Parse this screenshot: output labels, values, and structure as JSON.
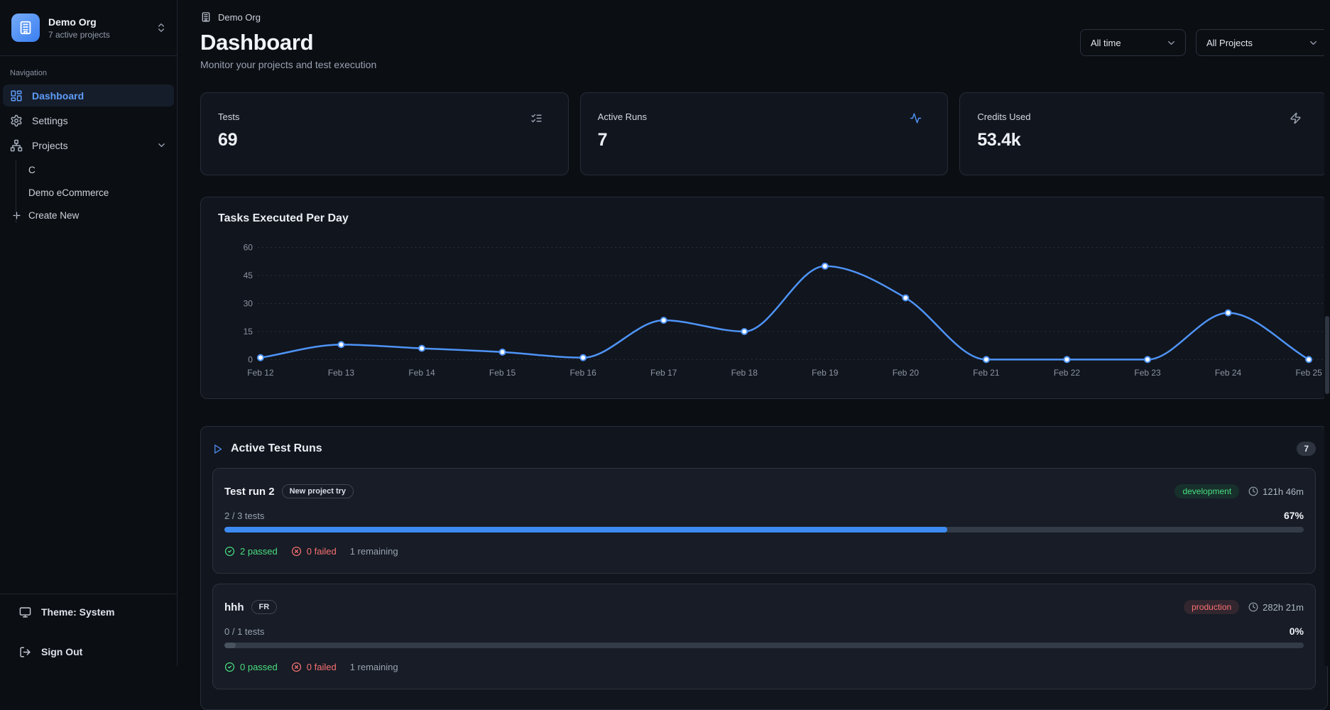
{
  "colors": {
    "accent_blue": "#4e94f8",
    "green": "#4ade80",
    "red": "#f87171",
    "grid": "#2a303c",
    "axis_text": "#8b94a3",
    "dot_fill": "#ffffff"
  },
  "sidebar": {
    "org": {
      "name": "Demo Org",
      "subtitle": "7 active projects",
      "avatar_icon": "building-icon",
      "switcher_icon": "chevrons-up-down-icon"
    },
    "section_label": "Navigation",
    "nav": [
      {
        "label": "Dashboard",
        "icon": "layout-dashboard-icon",
        "active": true
      },
      {
        "label": "Settings",
        "icon": "gear-icon",
        "active": false
      },
      {
        "label": "Projects",
        "icon": "network-icon",
        "active": false,
        "trailing_icon": "chevron-down-icon"
      }
    ],
    "projects": [
      {
        "label": "C"
      },
      {
        "label": "Demo eCommerce"
      }
    ],
    "create_new": {
      "label": "Create New",
      "icon": "plus-icon"
    },
    "footer": {
      "theme": {
        "label": "Theme: System",
        "icon": "monitor-icon"
      },
      "sign_out": {
        "label": "Sign Out",
        "icon": "log-out-icon"
      }
    }
  },
  "header": {
    "breadcrumb": {
      "label": "Demo Org",
      "icon": "building-icon"
    },
    "title": "Dashboard",
    "subtitle": "Monitor your projects and test execution",
    "filters": {
      "time_range": {
        "value": "All time",
        "icon": "chevron-down-icon"
      },
      "project": {
        "value": "All Projects",
        "icon": "chevron-down-icon"
      }
    }
  },
  "stats": [
    {
      "label": "Tests",
      "value": "69",
      "icon": "list-checks-icon"
    },
    {
      "label": "Active Runs",
      "value": "7",
      "icon": "activity-icon"
    },
    {
      "label": "Credits Used",
      "value": "53.4k",
      "icon": "zap-icon"
    }
  ],
  "chart_data": {
    "type": "line",
    "title": "Tasks Executed Per Day",
    "categories": [
      "Feb 12",
      "Feb 13",
      "Feb 14",
      "Feb 15",
      "Feb 16",
      "Feb 17",
      "Feb 18",
      "Feb 19",
      "Feb 20",
      "Feb 21",
      "Feb 22",
      "Feb 23",
      "Feb 24",
      "Feb 25"
    ],
    "values": [
      1,
      8,
      6,
      4,
      1,
      21,
      15,
      50,
      33,
      0,
      0,
      0,
      25,
      0
    ],
    "yticks": [
      0,
      15,
      30,
      45,
      60
    ],
    "ylim": [
      0,
      60
    ],
    "xlabel": "",
    "ylabel": "",
    "grid": "dotted-horizontal",
    "legend": "none",
    "line_color": "#4e94f8",
    "point_style": "white-fill-blue-ring"
  },
  "test_runs": {
    "title": "Active Test Runs",
    "header_icon": "play-icon",
    "count": "7",
    "runs": [
      {
        "name": "Test run 2",
        "tag": "New project try",
        "environment": "development",
        "duration": "121h 46m",
        "tests_label": "2 / 3 tests",
        "percent": "67%",
        "progress_pct": 67,
        "passed": "2 passed",
        "failed": "0 failed",
        "remaining": "1 remaining"
      },
      {
        "name": "hhh",
        "tag": "FR",
        "environment": "production",
        "duration": "282h 21m",
        "tests_label": "0 / 1 tests",
        "percent": "0%",
        "progress_pct": 0,
        "passed": "0 passed",
        "failed": "0 failed",
        "remaining": "1 remaining"
      }
    ]
  }
}
